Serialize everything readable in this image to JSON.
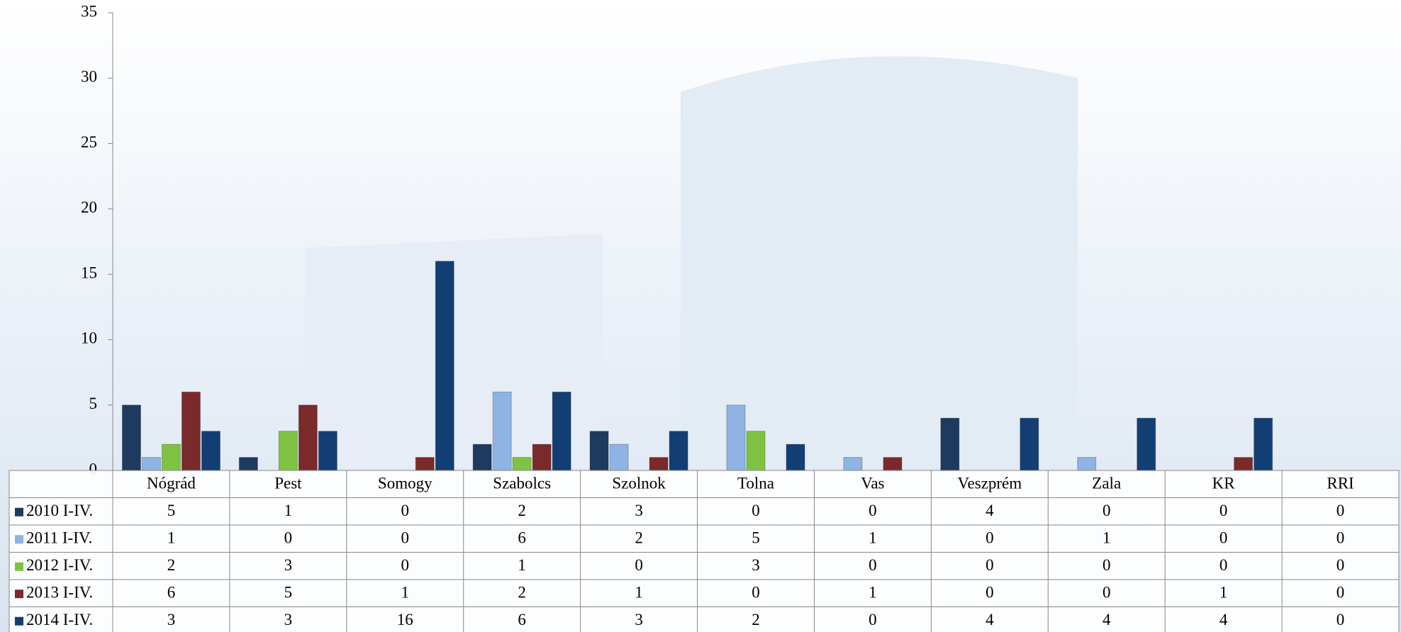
{
  "chart_data": {
    "type": "bar",
    "categories": [
      "Nógrád",
      "Pest",
      "Somogy",
      "Szabolcs",
      "Szolnok",
      "Tolna",
      "Vas",
      "Veszprém",
      "Zala",
      "KR",
      "RRI"
    ],
    "series": [
      {
        "name": "2010 I-IV.",
        "color": "#1f3a5f",
        "values": [
          5,
          1,
          0,
          2,
          3,
          0,
          0,
          4,
          0,
          0,
          0
        ]
      },
      {
        "name": "2011 I-IV.",
        "color": "#8fb4e3",
        "values": [
          1,
          0,
          0,
          6,
          2,
          5,
          1,
          0,
          1,
          0,
          0
        ]
      },
      {
        "name": "2012 I-IV.",
        "color": "#7fc241",
        "values": [
          2,
          3,
          0,
          1,
          0,
          3,
          0,
          0,
          0,
          0,
          0
        ]
      },
      {
        "name": "2013 I-IV.",
        "color": "#7a2a2a",
        "values": [
          6,
          5,
          1,
          2,
          1,
          0,
          1,
          0,
          0,
          1,
          0
        ]
      },
      {
        "name": "2014 I-IV.",
        "color": "#123e74",
        "values": [
          3,
          3,
          16,
          6,
          3,
          2,
          0,
          4,
          4,
          4,
          0
        ]
      }
    ],
    "ylim": [
      0,
      35
    ],
    "yticks": [
      0,
      5,
      10,
      15,
      20,
      25,
      30,
      35
    ]
  }
}
